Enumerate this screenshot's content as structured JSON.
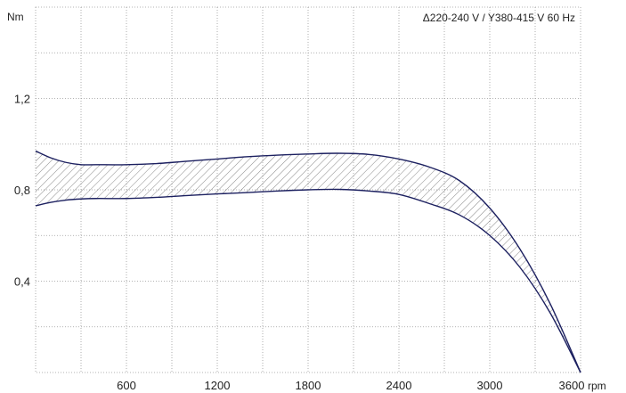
{
  "chart_data": {
    "type": "area",
    "title": "",
    "annotation": "Δ220-240 V / Y380-415 V 60 Hz",
    "ylabel": "Nm",
    "xlabel": "rpm",
    "x_ticks": [
      600,
      1200,
      1800,
      2400,
      3000,
      3600
    ],
    "x_tick_labels": [
      "600",
      "1200",
      "1800",
      "2400",
      "3000",
      "3600"
    ],
    "y_ticks": [
      0.4,
      0.8,
      1.2
    ],
    "y_tick_labels": [
      "0,4",
      "0,8",
      "1,2"
    ],
    "xlim": [
      0,
      3600
    ],
    "ylim": [
      0,
      1.6
    ],
    "grid": true,
    "series": [
      {
        "x": [
          0,
          100,
          200,
          300,
          400,
          600,
          800,
          1000,
          1200,
          1400,
          1600,
          1800,
          2000,
          2200,
          2400,
          2600,
          2800,
          3000,
          3200,
          3400,
          3600
        ],
        "values": [
          0.97,
          0.94,
          0.92,
          0.91,
          0.91,
          0.91,
          0.915,
          0.925,
          0.935,
          0.945,
          0.952,
          0.957,
          0.96,
          0.955,
          0.935,
          0.9,
          0.84,
          0.72,
          0.54,
          0.3,
          0.0
        ]
      },
      {
        "x": [
          0,
          100,
          200,
          300,
          400,
          600,
          800,
          1000,
          1200,
          1400,
          1600,
          1800,
          2000,
          2200,
          2400,
          2600,
          2800,
          3000,
          3200,
          3400,
          3600
        ],
        "values": [
          0.73,
          0.745,
          0.755,
          0.76,
          0.762,
          0.762,
          0.767,
          0.775,
          0.782,
          0.788,
          0.795,
          0.8,
          0.802,
          0.795,
          0.78,
          0.74,
          0.69,
          0.6,
          0.46,
          0.26,
          0.0
        ]
      }
    ]
  }
}
